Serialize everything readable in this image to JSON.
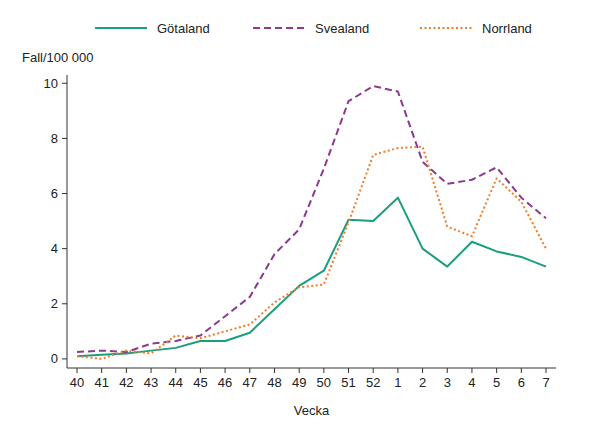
{
  "chart_data": {
    "type": "line",
    "y_label": "Fall/100 000",
    "x_label": "Vecka",
    "categories": [
      "40",
      "41",
      "42",
      "43",
      "44",
      "45",
      "46",
      "47",
      "48",
      "49",
      "50",
      "51",
      "52",
      "1",
      "2",
      "3",
      "4",
      "5",
      "6",
      "7"
    ],
    "series": [
      {
        "name": "Götaland",
        "color": "#1b9e7e",
        "line_style": "solid",
        "values": [
          0.1,
          0.15,
          0.2,
          0.3,
          0.4,
          0.65,
          0.65,
          0.95,
          1.8,
          2.65,
          3.2,
          5.05,
          5.0,
          5.85,
          4.0,
          3.35,
          4.25,
          3.9,
          3.7,
          3.35
        ]
      },
      {
        "name": "Svealand",
        "color": "#8b3a8f",
        "line_style": "dashed",
        "values": [
          0.25,
          0.3,
          0.25,
          0.55,
          0.65,
          0.85,
          1.55,
          2.25,
          3.8,
          4.7,
          6.9,
          9.35,
          9.9,
          9.7,
          7.15,
          6.35,
          6.5,
          6.95,
          5.85,
          5.1
        ]
      },
      {
        "name": "Norrland",
        "color": "#f07c28",
        "line_style": "dotted",
        "values": [
          0.1,
          0.0,
          0.3,
          0.2,
          0.85,
          0.75,
          1.0,
          1.25,
          2.05,
          2.6,
          2.7,
          4.95,
          7.4,
          7.65,
          7.7,
          4.8,
          4.45,
          6.55,
          5.7,
          4.0
        ]
      }
    ],
    "ylim": [
      -0.33,
      10.3
    ],
    "yticks": [
      0,
      2,
      4,
      6,
      8,
      10
    ],
    "grid": false,
    "legend": "top"
  }
}
